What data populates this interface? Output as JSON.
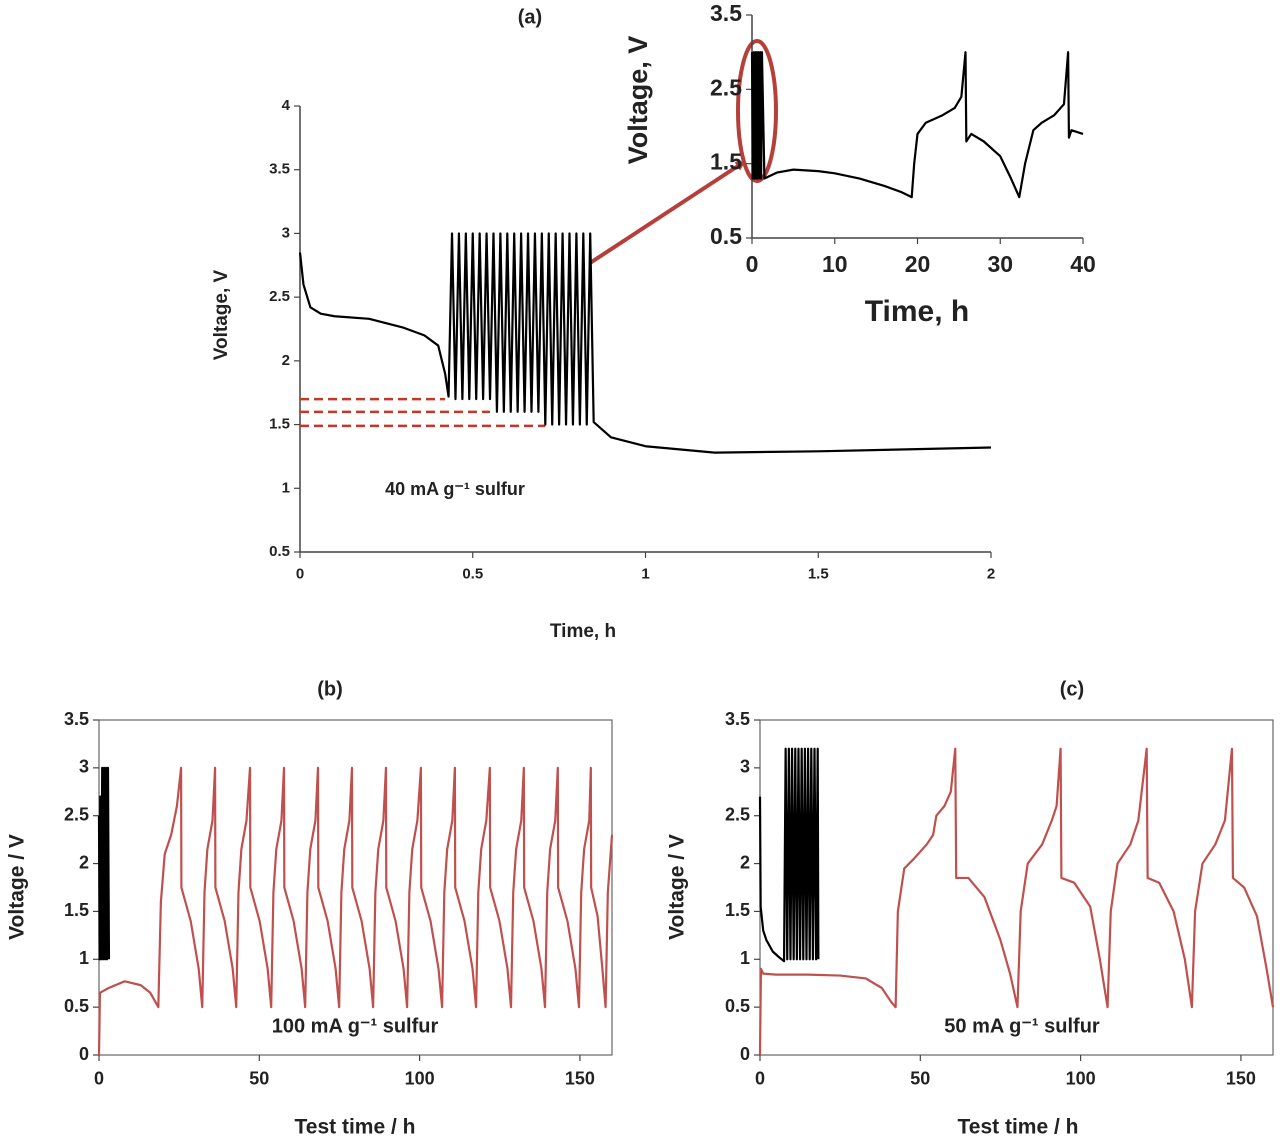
{
  "chart_data": [
    {
      "type": "line",
      "title": "(a)",
      "xlabel": "Time, h",
      "ylabel": "Voltage, V",
      "annotation": "40 mA g⁻¹ sulfur",
      "frame": false,
      "xlim": [
        0,
        2
      ],
      "ylim": [
        0.5,
        4
      ],
      "xticks": [
        0,
        0.5,
        1,
        1.5,
        2
      ],
      "yticks": [
        0.5,
        1,
        1.5,
        2,
        2.5,
        3,
        3.5,
        4
      ],
      "series": [
        {
          "color": "#000000",
          "x": [
            0,
            0.01,
            0.03,
            0.06,
            0.1,
            0.2,
            0.3,
            0.36,
            0.4,
            0.42,
            0.43,
            0.44,
            0.45,
            0.46,
            0.47,
            0.48,
            0.49,
            0.5,
            0.51,
            0.52,
            0.53,
            0.54,
            0.55,
            0.56,
            0.57,
            0.58,
            0.59,
            0.6,
            0.61,
            0.62,
            0.63,
            0.64,
            0.65,
            0.66,
            0.67,
            0.68,
            0.69,
            0.7,
            0.71,
            0.72,
            0.73,
            0.74,
            0.75,
            0.76,
            0.77,
            0.78,
            0.79,
            0.8,
            0.81,
            0.82,
            0.83,
            0.84,
            0.85,
            0.9,
            1.0,
            1.2,
            1.5,
            2.0
          ],
          "values": [
            2.85,
            2.6,
            2.42,
            2.37,
            2.35,
            2.33,
            2.26,
            2.2,
            2.12,
            1.9,
            1.72,
            3,
            1.7,
            3,
            1.7,
            3,
            1.7,
            3,
            1.7,
            3,
            1.7,
            3,
            1.7,
            3,
            1.6,
            3,
            1.6,
            3,
            1.6,
            3,
            1.6,
            3,
            1.6,
            3,
            1.6,
            3,
            1.6,
            3,
            1.5,
            3,
            1.5,
            3,
            1.5,
            3,
            1.5,
            3,
            1.5,
            3,
            1.5,
            3,
            1.5,
            3,
            1.52,
            1.4,
            1.33,
            1.28,
            1.29,
            1.32
          ]
        }
      ],
      "hlines": [
        {
          "y": 1.7,
          "x": [
            0,
            0.42
          ],
          "color": "#c0392b"
        },
        {
          "y": 1.6,
          "x": [
            0,
            0.55
          ],
          "color": "#c0392b"
        },
        {
          "y": 1.49,
          "x": [
            0,
            0.71
          ],
          "color": "#c0392b"
        }
      ]
    },
    {
      "type": "line",
      "xlabel": "Time, h",
      "ylabel": "Voltage, V",
      "frame": false,
      "xlim": [
        0,
        40
      ],
      "ylim": [
        0.5,
        3.5
      ],
      "xticks": [
        0,
        10,
        20,
        30,
        40
      ],
      "yticks": [
        0.5,
        1.5,
        2.5,
        3.5
      ],
      "series": [
        {
          "color": "#000000",
          "x": [
            0,
            0.1,
            0.2,
            0.3,
            0.4,
            0.5,
            0.6,
            0.7,
            0.8,
            0.9,
            1.0,
            1.1,
            1.2,
            1.5,
            3,
            5,
            8,
            10,
            13,
            16,
            18,
            19.3,
            19.6,
            20,
            21,
            23,
            24.5,
            25.3,
            25.8,
            25.9,
            26.5,
            28,
            30,
            31.3,
            32.3,
            33,
            34,
            35,
            36.5,
            37.7,
            38.2,
            38.3,
            38.6,
            40
          ],
          "values": [
            3.0,
            1.3,
            3.0,
            1.3,
            3.0,
            1.3,
            3.0,
            1.3,
            3.0,
            1.3,
            3.0,
            1.3,
            3.0,
            1.3,
            1.38,
            1.42,
            1.4,
            1.37,
            1.3,
            1.2,
            1.12,
            1.05,
            1.5,
            1.9,
            2.05,
            2.15,
            2.25,
            2.4,
            3.0,
            1.8,
            1.9,
            1.8,
            1.6,
            1.3,
            1.05,
            1.5,
            1.95,
            2.05,
            2.15,
            2.3,
            3.0,
            1.85,
            1.95,
            1.9
          ]
        }
      ]
    },
    {
      "type": "line",
      "title": "(b)",
      "xlabel": "Test time / h",
      "ylabel": "Voltage / V",
      "annotation": "100 mA g⁻¹ sulfur",
      "frame": true,
      "xlim": [
        0,
        160
      ],
      "ylim": [
        0,
        3.5
      ],
      "xticks": [
        0,
        50,
        100,
        150
      ],
      "yticks": [
        0,
        0.5,
        1,
        1.5,
        2,
        2.5,
        3,
        3.5
      ],
      "series": [
        {
          "color": "#000000",
          "x": [
            0,
            0.2,
            0.4,
            0.7,
            1.0,
            1.3,
            1.6,
            1.9,
            2.2,
            2.5,
            2.8,
            3.1
          ],
          "values": [
            2.5,
            1.0,
            2.7,
            1.0,
            3.0,
            1.0,
            3.0,
            1.0,
            3.0,
            1.0,
            3.0,
            1.0
          ]
        },
        {
          "color": "#c0504d",
          "x": [
            0,
            0.3,
            3,
            8,
            13,
            16,
            18.5,
            19.3,
            20.5,
            22.5,
            24.3,
            25.6,
            25.7,
            28.6,
            31.1,
            32.2,
            32.9,
            33.8,
            35.4,
            36.2,
            36.3,
            39.2,
            41.7,
            42.8,
            43.5,
            44.4,
            46.0,
            47.1,
            47.2,
            50.1,
            52.6,
            53.7,
            54.4,
            55.3,
            56.9,
            57.7,
            57.8,
            60.7,
            63.2,
            64.3,
            65.0,
            65.9,
            67.5,
            68.3,
            68.4,
            71.3,
            73.8,
            74.9,
            75.6,
            76.5,
            78.1,
            78.9,
            79.0,
            81.9,
            84.4,
            85.5,
            86.2,
            87.1,
            88.7,
            89.5,
            89.6,
            92.5,
            95.0,
            96.1,
            96.8,
            97.7,
            99.3,
            100.4,
            100.5,
            103.4,
            105.9,
            107.0,
            107.7,
            108.6,
            110.2,
            111.0,
            111.1,
            114.0,
            116.5,
            117.6,
            118.3,
            119.2,
            120.8,
            121.9,
            122.0,
            124.9,
            127.4,
            128.5,
            129.2,
            130.1,
            131.7,
            132.5,
            132.6,
            135.5,
            138.0,
            139.1,
            139.8,
            140.7,
            142.3,
            143.1,
            143.2,
            146.1,
            148.6,
            149.7,
            150.4,
            151.3,
            152.9,
            153.4,
            153.5,
            155.5,
            157.0,
            158.0,
            158.7,
            160
          ],
          "values": [
            0,
            0.65,
            0.7,
            0.77,
            0.73,
            0.65,
            0.5,
            1.6,
            2.1,
            2.3,
            2.6,
            3.0,
            1.75,
            1.4,
            0.9,
            0.5,
            1.7,
            2.15,
            2.45,
            3.0,
            1.75,
            1.4,
            0.9,
            0.5,
            1.7,
            2.15,
            2.45,
            3.0,
            1.75,
            1.4,
            0.9,
            0.5,
            1.7,
            2.15,
            2.45,
            3.0,
            1.75,
            1.4,
            0.9,
            0.5,
            1.7,
            2.15,
            2.45,
            3.0,
            1.75,
            1.4,
            0.9,
            0.5,
            1.7,
            2.15,
            2.45,
            3.0,
            1.75,
            1.4,
            0.9,
            0.5,
            1.7,
            2.15,
            2.45,
            3.0,
            1.75,
            1.4,
            0.9,
            0.5,
            1.7,
            2.15,
            2.45,
            3.0,
            1.75,
            1.4,
            0.9,
            0.5,
            1.7,
            2.15,
            2.45,
            3.0,
            1.75,
            1.4,
            0.9,
            0.5,
            1.7,
            2.15,
            2.45,
            3.0,
            1.75,
            1.4,
            0.9,
            0.5,
            1.7,
            2.15,
            2.45,
            3.0,
            1.75,
            1.4,
            0.9,
            0.5,
            1.7,
            2.15,
            2.45,
            3.0,
            1.75,
            1.4,
            0.9,
            0.5,
            1.7,
            2.15,
            2.45,
            3.0,
            1.75,
            1.45,
            0.9,
            0.5,
            1.7,
            2.3
          ]
        }
      ]
    },
    {
      "type": "line",
      "title": "(c)",
      "xlabel": "Test time / h",
      "ylabel": "Voltage / V",
      "annotation": "50 mA g⁻¹ sulfur",
      "frame": true,
      "xlim": [
        0,
        160
      ],
      "ylim": [
        0,
        3.5
      ],
      "xticks": [
        0,
        50,
        100,
        150
      ],
      "yticks": [
        0,
        0.5,
        1,
        1.5,
        2,
        2.5,
        3,
        3.5
      ],
      "series": [
        {
          "color": "#000000",
          "x": [
            0,
            0.2,
            1,
            2,
            4,
            6,
            7.5,
            8,
            8.5,
            9,
            9.5,
            10,
            10.5,
            11,
            11.5,
            12,
            12.5,
            13,
            13.5,
            14,
            14.5,
            15,
            15.5,
            16,
            16.5,
            17,
            17.5,
            18,
            18.2
          ],
          "values": [
            2.7,
            1.55,
            1.3,
            1.2,
            1.08,
            1.02,
            0.98,
            3.2,
            1.0,
            3.2,
            1.0,
            3.2,
            1.0,
            3.2,
            1.0,
            3.2,
            1.0,
            3.2,
            1.0,
            3.2,
            1.0,
            3.2,
            1.0,
            3.2,
            1.0,
            3.2,
            1.0,
            3.2,
            1.0
          ]
        },
        {
          "color": "#c0504d",
          "x": [
            0,
            0.3,
            1,
            5,
            15,
            25,
            33,
            38,
            41,
            42.3,
            43,
            45,
            48,
            52,
            54,
            55,
            57.5,
            59.5,
            60.9,
            61.2,
            65,
            70,
            75,
            78,
            80.3,
            81.3,
            83.5,
            88,
            91,
            92.5,
            93.75,
            94,
            98,
            103,
            106,
            108.4,
            109.4,
            111.5,
            115.5,
            118,
            120.6,
            120.9,
            124.5,
            129,
            132.5,
            134.7,
            135.7,
            138,
            142,
            145,
            147.2,
            147.5,
            151,
            155,
            158,
            160
          ],
          "values": [
            0,
            0.9,
            0.85,
            0.84,
            0.84,
            0.83,
            0.8,
            0.7,
            0.55,
            0.5,
            1.5,
            1.95,
            2.05,
            2.2,
            2.3,
            2.5,
            2.6,
            2.75,
            3.2,
            1.85,
            1.85,
            1.65,
            1.2,
            0.85,
            0.5,
            1.5,
            2.0,
            2.2,
            2.45,
            2.6,
            3.2,
            1.85,
            1.8,
            1.55,
            1.0,
            0.5,
            1.5,
            2.0,
            2.2,
            2.45,
            3.2,
            1.85,
            1.8,
            1.5,
            1.0,
            0.5,
            1.5,
            2.0,
            2.2,
            2.45,
            3.2,
            1.85,
            1.75,
            1.45,
            0.9,
            0.5
          ]
        }
      ]
    }
  ]
}
